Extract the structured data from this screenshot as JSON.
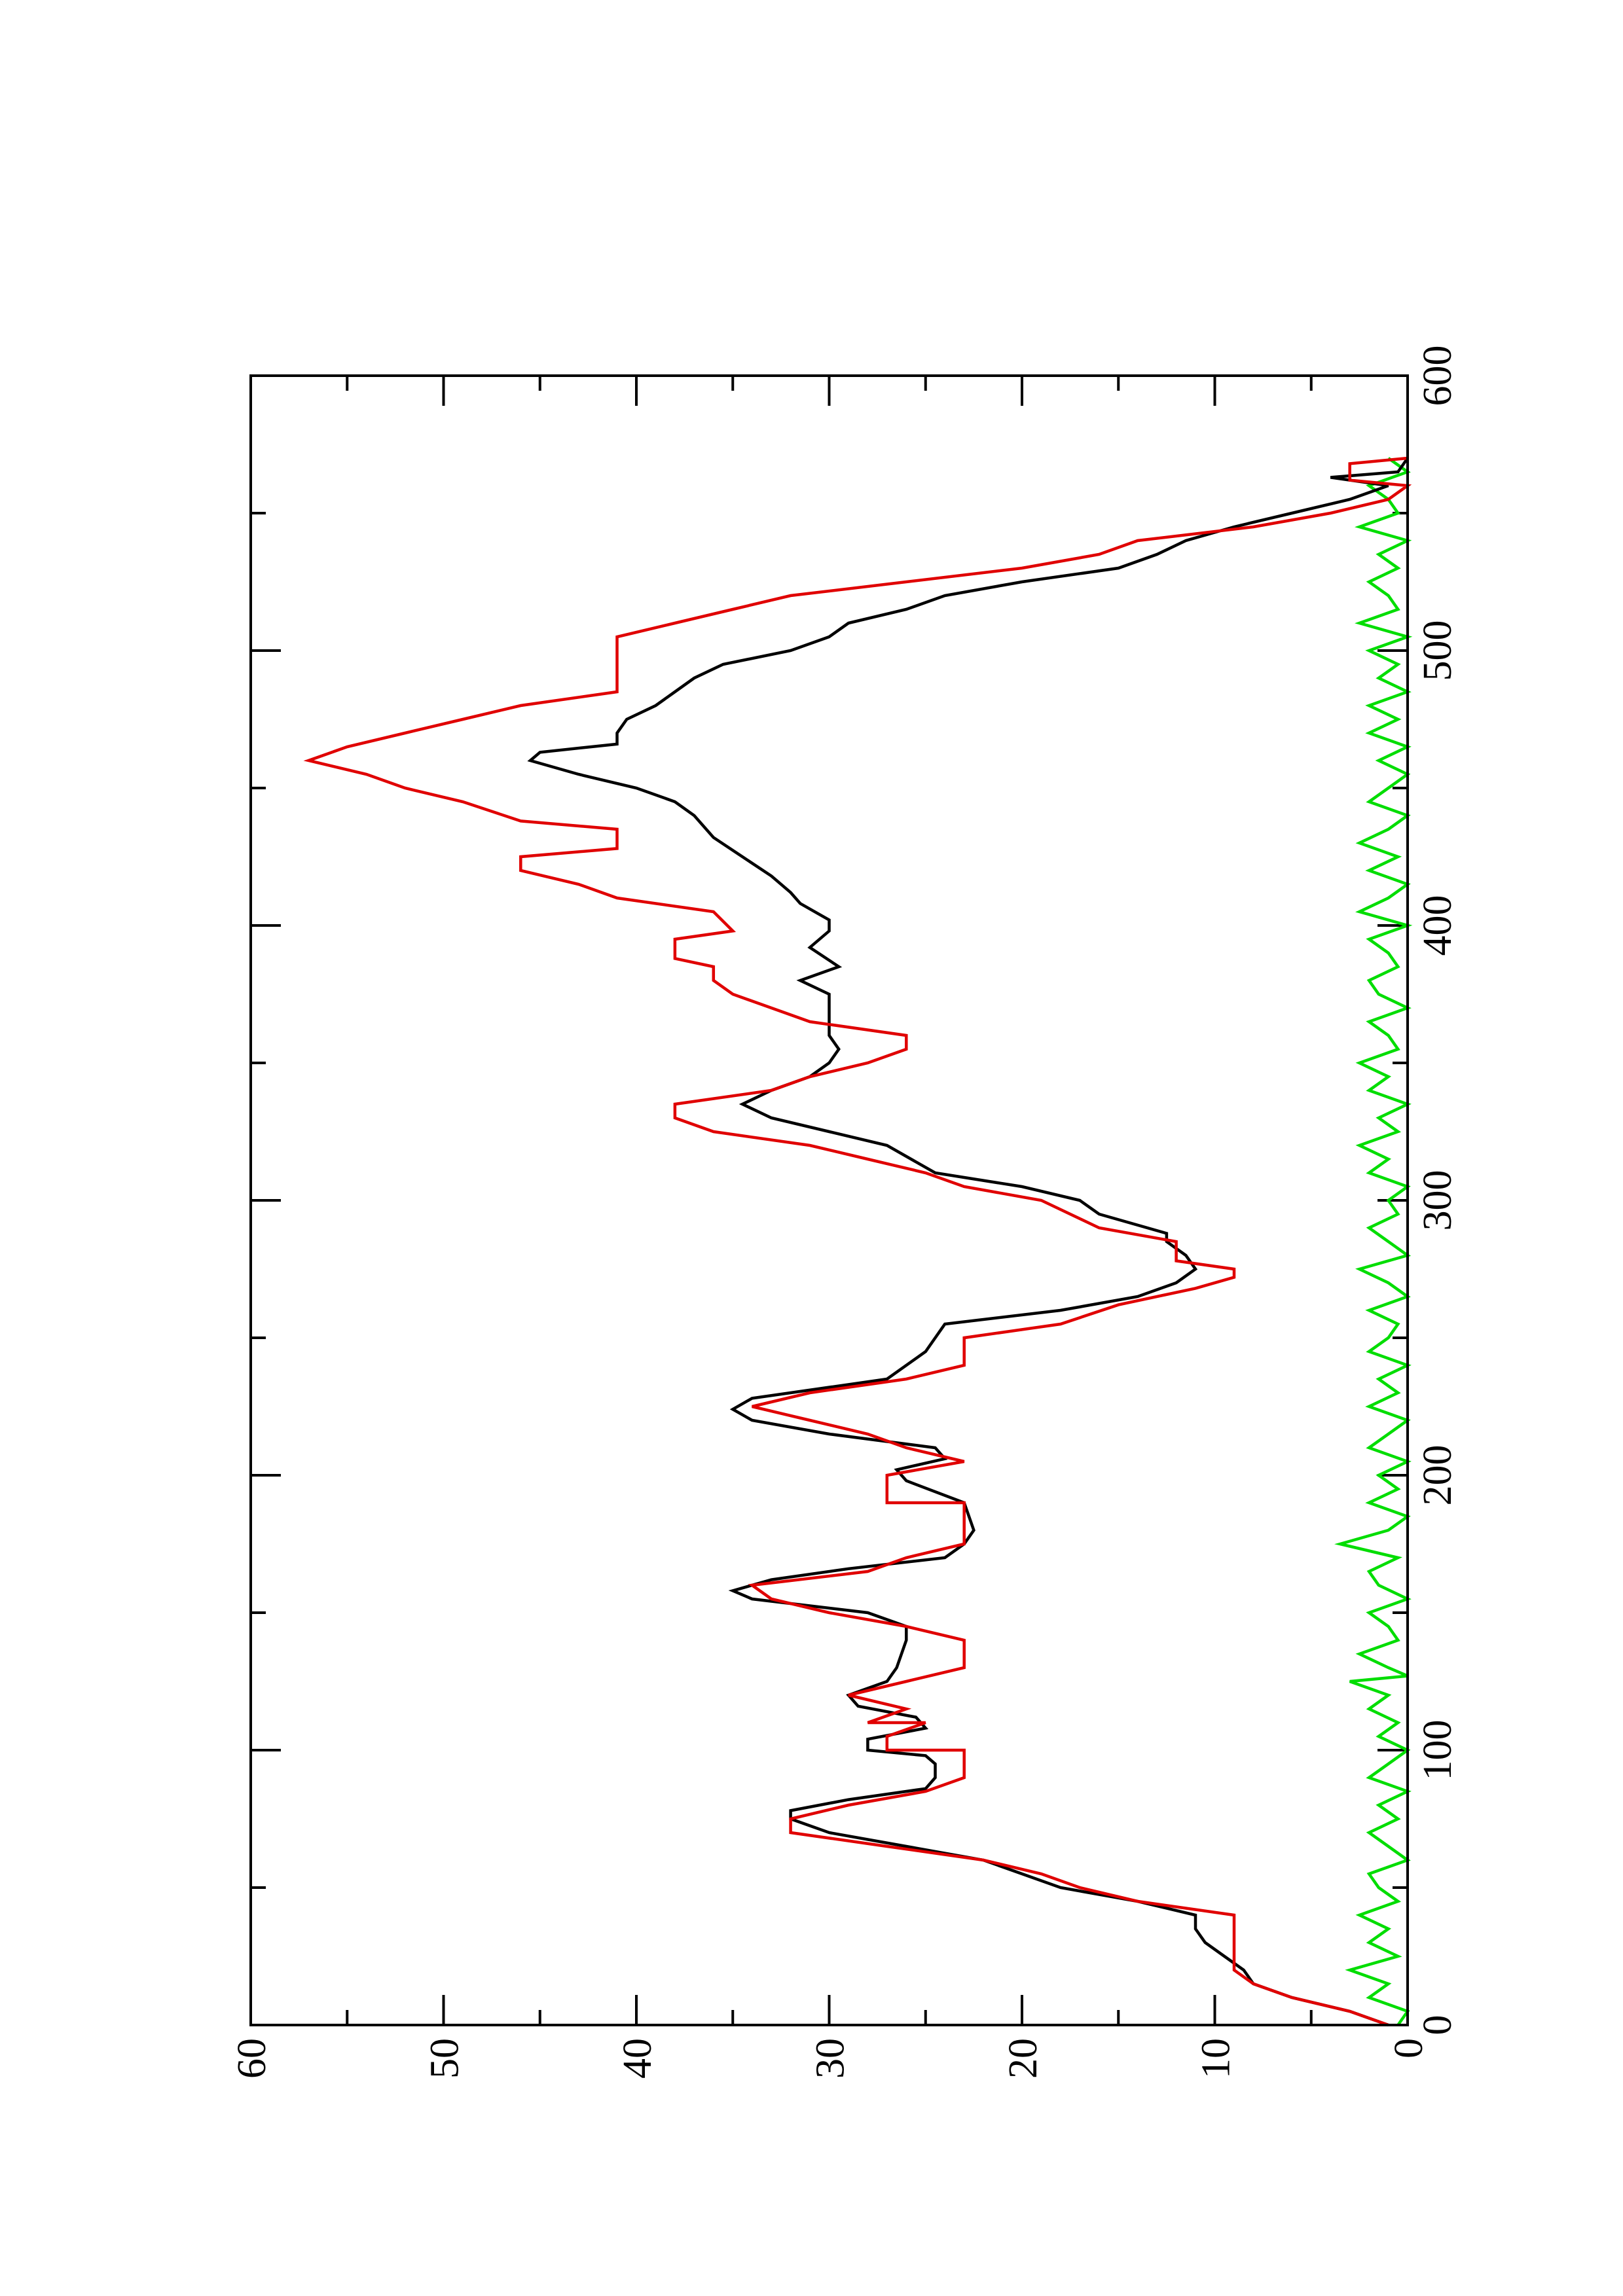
{
  "chart_data": {
    "type": "line",
    "orientation": "rotated-90-ccw",
    "title": "",
    "xlabel": "",
    "ylabel": "",
    "xlim": [
      0,
      600
    ],
    "ylim": [
      0,
      60
    ],
    "grid": false,
    "legend": "none",
    "x_ticks": [
      "0",
      "100",
      "200",
      "300",
      "400",
      "500",
      "600"
    ],
    "y_ticks": [
      "0",
      "10",
      "20",
      "30",
      "40",
      "50",
      "60"
    ],
    "colors": {
      "black": "#000000",
      "red": "#e00000",
      "green": "#00dd00"
    },
    "series": [
      {
        "color": "black",
        "points": [
          [
            0,
            1
          ],
          [
            5,
            3
          ],
          [
            10,
            6
          ],
          [
            15,
            8
          ],
          [
            20,
            8.5
          ],
          [
            25,
            9.5
          ],
          [
            30,
            10.5
          ],
          [
            35,
            11
          ],
          [
            40,
            11
          ],
          [
            45,
            14
          ],
          [
            50,
            18
          ],
          [
            55,
            20
          ],
          [
            60,
            22
          ],
          [
            65,
            26
          ],
          [
            70,
            30
          ],
          [
            75,
            32
          ],
          [
            78,
            32
          ],
          [
            82,
            29
          ],
          [
            86,
            25
          ],
          [
            90,
            24.5
          ],
          [
            95,
            24.5
          ],
          [
            98,
            25
          ],
          [
            100,
            28
          ],
          [
            104,
            28
          ],
          [
            108,
            25
          ],
          [
            112,
            25.5
          ],
          [
            116,
            28.5
          ],
          [
            120,
            29
          ],
          [
            125,
            27
          ],
          [
            130,
            26.5
          ],
          [
            140,
            26
          ],
          [
            145,
            26
          ],
          [
            150,
            28
          ],
          [
            155,
            34
          ],
          [
            158,
            35
          ],
          [
            162,
            33
          ],
          [
            166,
            29
          ],
          [
            170,
            24
          ],
          [
            175,
            23
          ],
          [
            180,
            22.5
          ],
          [
            190,
            23
          ],
          [
            198,
            26
          ],
          [
            202,
            26.5
          ],
          [
            206,
            24
          ],
          [
            210,
            24.5
          ],
          [
            215,
            30
          ],
          [
            220,
            34
          ],
          [
            224,
            35
          ],
          [
            228,
            34
          ],
          [
            235,
            27
          ],
          [
            245,
            25
          ],
          [
            250,
            24.5
          ],
          [
            255,
            24
          ],
          [
            260,
            18
          ],
          [
            265,
            14
          ],
          [
            270,
            12
          ],
          [
            275,
            11
          ],
          [
            280,
            11.5
          ],
          [
            285,
            12.5
          ],
          [
            288,
            12.5
          ],
          [
            295,
            16
          ],
          [
            300,
            17
          ],
          [
            305,
            20
          ],
          [
            310,
            24.5
          ],
          [
            320,
            27
          ],
          [
            325,
            30
          ],
          [
            330,
            33
          ],
          [
            335,
            34.5
          ],
          [
            340,
            33
          ],
          [
            345,
            31
          ],
          [
            350,
            30
          ],
          [
            355,
            29.5
          ],
          [
            360,
            30
          ],
          [
            370,
            30
          ],
          [
            375,
            30
          ],
          [
            380,
            31.5
          ],
          [
            385,
            29.5
          ],
          [
            392,
            31
          ],
          [
            398,
            30
          ],
          [
            402,
            30
          ],
          [
            408,
            31.5
          ],
          [
            412,
            32
          ],
          [
            418,
            33
          ],
          [
            425,
            34.5
          ],
          [
            432,
            36
          ],
          [
            440,
            37
          ],
          [
            445,
            38
          ],
          [
            450,
            40
          ],
          [
            455,
            43
          ],
          [
            460,
            45.5
          ],
          [
            463,
            45
          ],
          [
            466,
            41
          ],
          [
            470,
            41
          ],
          [
            475,
            40.5
          ],
          [
            480,
            39
          ],
          [
            485,
            38
          ],
          [
            490,
            37
          ],
          [
            495,
            35.5
          ],
          [
            500,
            32
          ],
          [
            505,
            30
          ],
          [
            510,
            29
          ],
          [
            515,
            26
          ],
          [
            520,
            24
          ],
          [
            525,
            20
          ],
          [
            530,
            15
          ],
          [
            535,
            13
          ],
          [
            540,
            11.5
          ],
          [
            545,
            9
          ],
          [
            550,
            6
          ],
          [
            555,
            3
          ],
          [
            560,
            1
          ],
          [
            563,
            4
          ],
          [
            565,
            0.5
          ],
          [
            570,
            0
          ]
        ]
      },
      {
        "color": "red",
        "points": [
          [
            0,
            1
          ],
          [
            5,
            3
          ],
          [
            10,
            6
          ],
          [
            15,
            8
          ],
          [
            20,
            9
          ],
          [
            40,
            9
          ],
          [
            45,
            14
          ],
          [
            50,
            17
          ],
          [
            55,
            19
          ],
          [
            60,
            22
          ],
          [
            65,
            27
          ],
          [
            70,
            32
          ],
          [
            75,
            32
          ],
          [
            80,
            29
          ],
          [
            85,
            25
          ],
          [
            90,
            23
          ],
          [
            100,
            23
          ],
          [
            100,
            27
          ],
          [
            105,
            27
          ],
          [
            110,
            25
          ],
          [
            110,
            28
          ],
          [
            115,
            26
          ],
          [
            120,
            29
          ],
          [
            125,
            26
          ],
          [
            130,
            23
          ],
          [
            140,
            23
          ],
          [
            145,
            26
          ],
          [
            150,
            30
          ],
          [
            155,
            33
          ],
          [
            160,
            34
          ],
          [
            165,
            28
          ],
          [
            170,
            26
          ],
          [
            175,
            23
          ],
          [
            190,
            23
          ],
          [
            190,
            27
          ],
          [
            200,
            27
          ],
          [
            205,
            23
          ],
          [
            210,
            26
          ],
          [
            215,
            28
          ],
          [
            220,
            31
          ],
          [
            225,
            34
          ],
          [
            230,
            31
          ],
          [
            235,
            26
          ],
          [
            240,
            23
          ],
          [
            250,
            23
          ],
          [
            255,
            18
          ],
          [
            262,
            15
          ],
          [
            268,
            11
          ],
          [
            272,
            9
          ],
          [
            275,
            9
          ],
          [
            278,
            12
          ],
          [
            285,
            12
          ],
          [
            290,
            16
          ],
          [
            300,
            19
          ],
          [
            305,
            23
          ],
          [
            310,
            25
          ],
          [
            315,
            28
          ],
          [
            320,
            31
          ],
          [
            325,
            36
          ],
          [
            330,
            38
          ],
          [
            335,
            38
          ],
          [
            340,
            33
          ],
          [
            345,
            31
          ],
          [
            350,
            28
          ],
          [
            355,
            26
          ],
          [
            360,
            26
          ],
          [
            365,
            31
          ],
          [
            370,
            33
          ],
          [
            375,
            35
          ],
          [
            380,
            36
          ],
          [
            385,
            36
          ],
          [
            388,
            38
          ],
          [
            395,
            38
          ],
          [
            398,
            35
          ],
          [
            405,
            36
          ],
          [
            410,
            41
          ],
          [
            415,
            43
          ],
          [
            420,
            46
          ],
          [
            425,
            46
          ],
          [
            428,
            41
          ],
          [
            435,
            41
          ],
          [
            438,
            46
          ],
          [
            445,
            49
          ],
          [
            450,
            52
          ],
          [
            455,
            54
          ],
          [
            460,
            57
          ],
          [
            465,
            55
          ],
          [
            470,
            52
          ],
          [
            475,
            49
          ],
          [
            480,
            46
          ],
          [
            485,
            41
          ],
          [
            505,
            41
          ],
          [
            510,
            38
          ],
          [
            515,
            35
          ],
          [
            520,
            32
          ],
          [
            530,
            20
          ],
          [
            535,
            16
          ],
          [
            540,
            14
          ],
          [
            545,
            8
          ],
          [
            550,
            4
          ],
          [
            555,
            1
          ],
          [
            560,
            0
          ],
          [
            562,
            3
          ],
          [
            568,
            3
          ],
          [
            570,
            0
          ]
        ]
      },
      {
        "color": "green",
        "points": [
          [
            0,
            0.5
          ],
          [
            5,
            0
          ],
          [
            10,
            2
          ],
          [
            15,
            1
          ],
          [
            20,
            3
          ],
          [
            25,
            0.5
          ],
          [
            30,
            2
          ],
          [
            35,
            1
          ],
          [
            40,
            2.5
          ],
          [
            45,
            0.5
          ],
          [
            50,
            1.5
          ],
          [
            55,
            2
          ],
          [
            60,
            0
          ],
          [
            65,
            1
          ],
          [
            70,
            2
          ],
          [
            75,
            0.5
          ],
          [
            80,
            1.5
          ],
          [
            85,
            0
          ],
          [
            90,
            2
          ],
          [
            95,
            1
          ],
          [
            100,
            0
          ],
          [
            105,
            1.5
          ],
          [
            110,
            0.5
          ],
          [
            115,
            2
          ],
          [
            120,
            1
          ],
          [
            125,
            3
          ],
          [
            127,
            0
          ],
          [
            130,
            1
          ],
          [
            135,
            2.5
          ],
          [
            140,
            0.5
          ],
          [
            145,
            1
          ],
          [
            150,
            2
          ],
          [
            155,
            0
          ],
          [
            160,
            1.5
          ],
          [
            165,
            2
          ],
          [
            170,
            0.5
          ],
          [
            175,
            3.5
          ],
          [
            180,
            1
          ],
          [
            185,
            0
          ],
          [
            190,
            2
          ],
          [
            195,
            0.5
          ],
          [
            200,
            1.5
          ],
          [
            205,
            0
          ],
          [
            210,
            2
          ],
          [
            215,
            1
          ],
          [
            220,
            0
          ],
          [
            225,
            2
          ],
          [
            230,
            0.5
          ],
          [
            235,
            1.5
          ],
          [
            240,
            0
          ],
          [
            245,
            2
          ],
          [
            250,
            1
          ],
          [
            255,
            0.5
          ],
          [
            260,
            2
          ],
          [
            265,
            0
          ],
          [
            270,
            1
          ],
          [
            275,
            2.5
          ],
          [
            280,
            0
          ],
          [
            285,
            1
          ],
          [
            290,
            2
          ],
          [
            295,
            0.5
          ],
          [
            300,
            1
          ],
          [
            305,
            0
          ],
          [
            310,
            2
          ],
          [
            315,
            1
          ],
          [
            320,
            2.5
          ],
          [
            325,
            0.5
          ],
          [
            330,
            1.5
          ],
          [
            335,
            0
          ],
          [
            340,
            2
          ],
          [
            345,
            1
          ],
          [
            350,
            2.5
          ],
          [
            355,
            0.5
          ],
          [
            360,
            1
          ],
          [
            365,
            2
          ],
          [
            370,
            0
          ],
          [
            375,
            1.5
          ],
          [
            380,
            2
          ],
          [
            385,
            0.5
          ],
          [
            390,
            1
          ],
          [
            395,
            2
          ],
          [
            400,
            0
          ],
          [
            405,
            2.5
          ],
          [
            410,
            1
          ],
          [
            415,
            0
          ],
          [
            420,
            2
          ],
          [
            425,
            0.5
          ],
          [
            430,
            2.5
          ],
          [
            435,
            1
          ],
          [
            440,
            0
          ],
          [
            445,
            2
          ],
          [
            450,
            1
          ],
          [
            455,
            0
          ],
          [
            460,
            1.5
          ],
          [
            465,
            0
          ],
          [
            470,
            2
          ],
          [
            475,
            0.5
          ],
          [
            480,
            2
          ],
          [
            485,
            0
          ],
          [
            490,
            1.5
          ],
          [
            495,
            0.5
          ],
          [
            500,
            2
          ],
          [
            505,
            0
          ],
          [
            510,
            2.5
          ],
          [
            515,
            0.5
          ],
          [
            520,
            1
          ],
          [
            525,
            2
          ],
          [
            530,
            0.5
          ],
          [
            535,
            1.5
          ],
          [
            540,
            0
          ],
          [
            545,
            2.5
          ],
          [
            550,
            0.5
          ],
          [
            555,
            1
          ],
          [
            560,
            2
          ],
          [
            565,
            0
          ],
          [
            570,
            1
          ]
        ]
      }
    ]
  }
}
